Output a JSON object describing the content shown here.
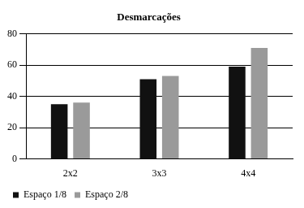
{
  "chart_data": {
    "type": "bar",
    "title": "Desmarcações",
    "categories": [
      "2x2",
      "3x3",
      "4x4"
    ],
    "series": [
      {
        "name": "Espaço 1/8",
        "color": "#111111",
        "values": [
          35,
          51,
          59
        ]
      },
      {
        "name": "Espaço 2/8",
        "color": "#9a9a9a",
        "values": [
          36,
          53,
          71
        ]
      }
    ],
    "ylim": [
      0,
      80
    ],
    "yticks": [
      0,
      20,
      40,
      60,
      80
    ],
    "grid": true,
    "legend": "bottom"
  }
}
